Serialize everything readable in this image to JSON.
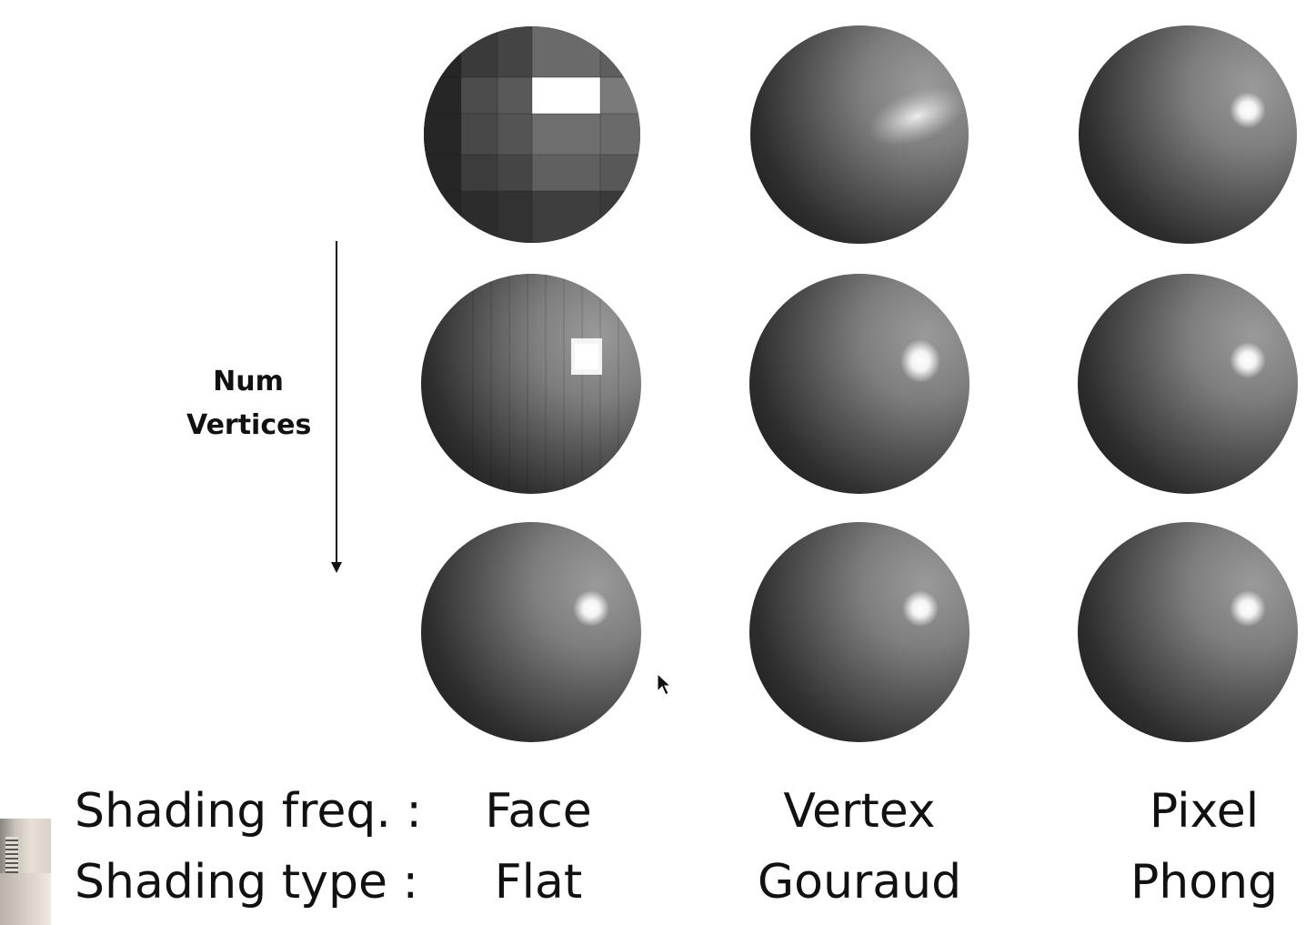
{
  "side_label": {
    "line1": "Num",
    "line2": "Vertices"
  },
  "shading_freq": {
    "title": "Shading freq. :",
    "values": [
      "Face",
      "Vertex",
      "Pixel"
    ]
  },
  "shading_type": {
    "title": "Shading type :",
    "values": [
      "Flat",
      "Gouraud",
      "Phong"
    ]
  }
}
